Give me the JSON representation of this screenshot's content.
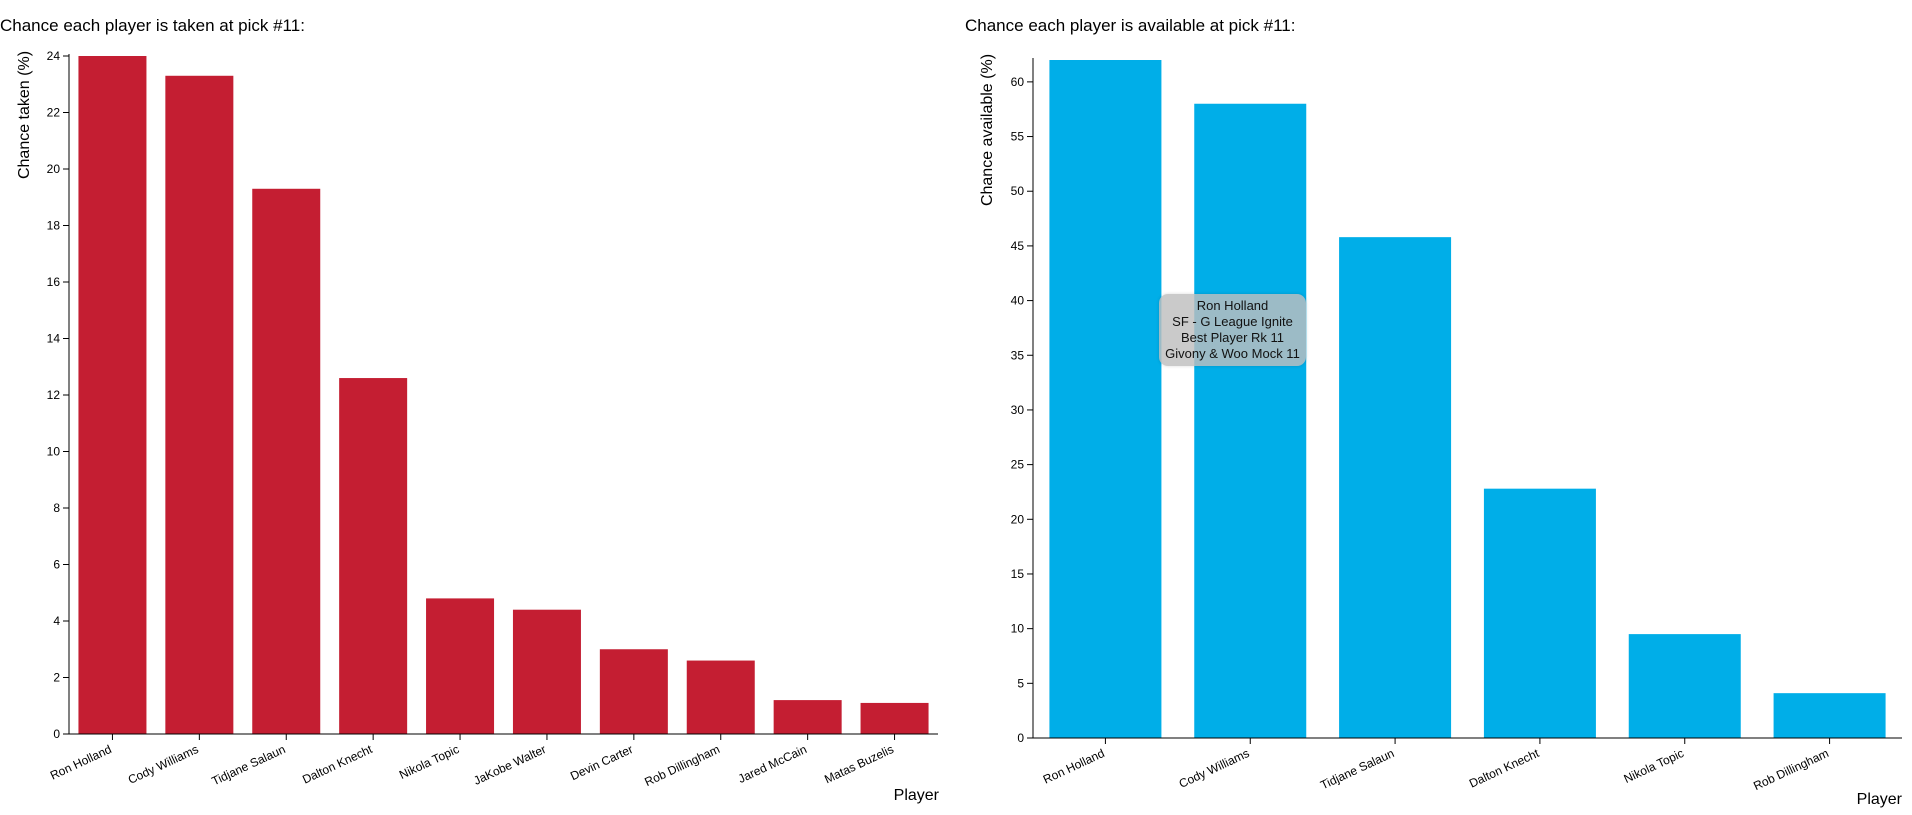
{
  "charts": {
    "left": {
      "title": "Chance each player is taken at pick #11:"
    },
    "right": {
      "title": "Chance each player is available at pick #11:"
    }
  },
  "tooltip": {
    "lines": [
      "Ron Holland",
      "SF - G League Ignite",
      "Best Player Rk 11",
      "Givony & Woo Mock 11"
    ]
  },
  "colors": {
    "left_bars": "#c41e32",
    "right_bars": "#00aee8"
  },
  "chart_data": [
    {
      "type": "bar",
      "title": "Chance each player is taken at pick #11:",
      "xlabel": "Player",
      "ylabel": "Chance taken (%)",
      "ylim": [
        0,
        24
      ],
      "yticks": [
        0,
        2,
        4,
        6,
        8,
        10,
        12,
        14,
        16,
        18,
        20,
        22,
        24
      ],
      "categories": [
        "Ron Holland",
        "Cody Williams",
        "Tidjane Salaun",
        "Dalton Knecht",
        "Nikola Topic",
        "JaKobe Walter",
        "Devin Carter",
        "Rob Dillingham",
        "Jared McCain",
        "Matas Buzelis"
      ],
      "values": [
        24.0,
        23.3,
        19.3,
        12.6,
        4.8,
        4.4,
        3.0,
        2.6,
        1.2,
        1.1
      ],
      "grid": false
    },
    {
      "type": "bar",
      "title": "Chance each player is available at pick #11:",
      "xlabel": "Player",
      "ylabel": "Chance available (%)",
      "ylim": [
        0,
        62
      ],
      "yticks": [
        0,
        5,
        10,
        15,
        20,
        25,
        30,
        35,
        40,
        45,
        50,
        55,
        60
      ],
      "categories": [
        "Ron Holland",
        "Cody Williams",
        "Tidjane Salaun",
        "Dalton Knecht",
        "Nikola Topic",
        "Rob Dillingham"
      ],
      "values": [
        62.0,
        58.0,
        45.8,
        22.8,
        9.5,
        4.1
      ],
      "grid": false
    }
  ]
}
